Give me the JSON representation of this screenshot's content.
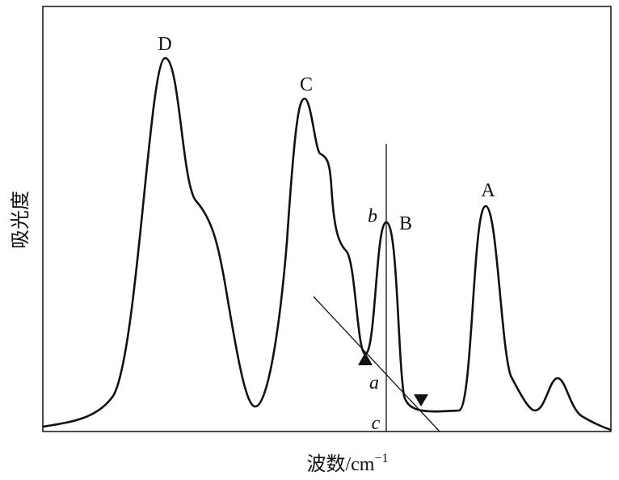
{
  "peaks": {
    "d": "D",
    "c": "C",
    "b": "B",
    "a": "A"
  },
  "points": {
    "b": "b",
    "a": "a",
    "c": "c"
  },
  "y_axis_label": "吸光度",
  "x_axis_label": {
    "text": "波数/cm",
    "superscript": "−1"
  }
}
